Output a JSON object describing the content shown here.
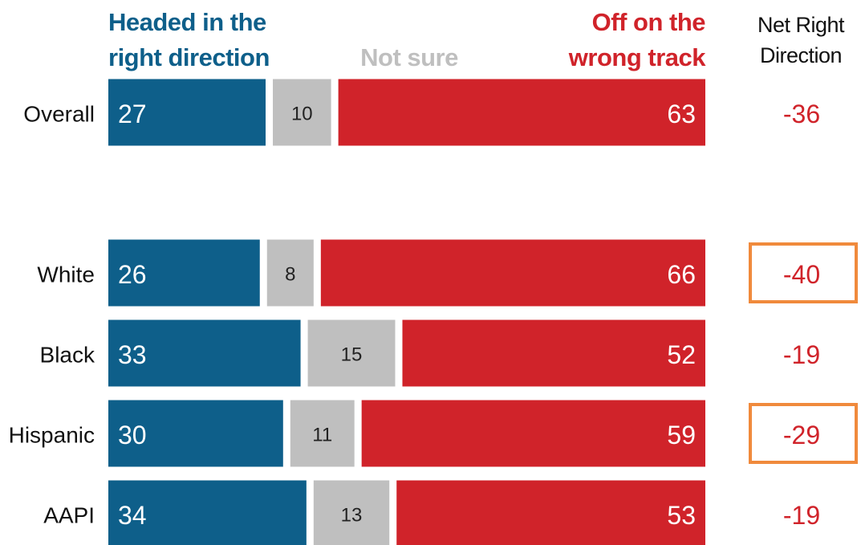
{
  "chart_data": {
    "type": "stacked-bar",
    "categories": [
      "Overall",
      "White",
      "Black",
      "Hispanic",
      "AAPI"
    ],
    "series": [
      {
        "name": "Headed in the right direction",
        "color": "#0e5f8a",
        "values": [
          27,
          26,
          33,
          30,
          34
        ]
      },
      {
        "name": "Not sure",
        "color": "#bfbfbf",
        "values": [
          10,
          8,
          15,
          11,
          13
        ]
      },
      {
        "name": "Off on the wrong track",
        "color": "#d0232a",
        "values": [
          63,
          66,
          52,
          59,
          53
        ]
      }
    ],
    "xlim": [
      0,
      100
    ],
    "net": {
      "title": "Net Right Direction",
      "values": [
        -36,
        -40,
        -19,
        -29,
        -19
      ],
      "color": "#d0232a",
      "highlight": [
        false,
        true,
        false,
        true,
        false
      ],
      "highlight_color": "#f08a3c"
    }
  }
}
